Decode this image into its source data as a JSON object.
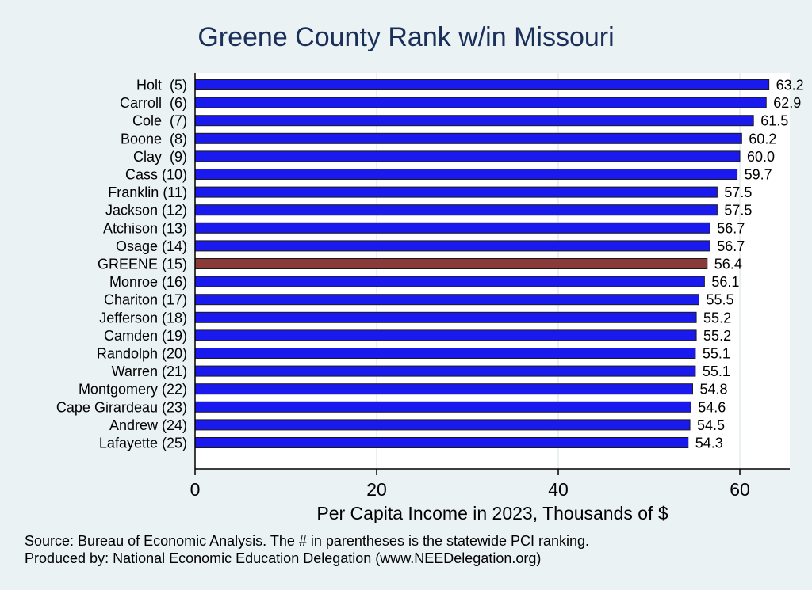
{
  "chart_data": {
    "type": "bar",
    "orientation": "horizontal",
    "title": "Greene County Rank w/in Missouri",
    "xlabel": "Per Capita Income in 2023, Thousands of $",
    "ylabel": "",
    "xlim": [
      0,
      65.5
    ],
    "xticks": [
      0,
      20,
      40,
      60
    ],
    "grid": true,
    "categories": [
      "Holt  (5)",
      "Carroll  (6)",
      "Cole  (7)",
      "Boone  (8)",
      "Clay  (9)",
      "Cass (10)",
      "Franklin (11)",
      "Jackson (12)",
      "Atchison (13)",
      "Osage (14)",
      "GREENE (15)",
      "Monroe (16)",
      "Chariton (17)",
      "Jefferson (18)",
      "Camden (19)",
      "Randolph (20)",
      "Warren (21)",
      "Montgomery (22)",
      "Cape Girardeau (23)",
      "Andrew (24)",
      "Lafayette (25)"
    ],
    "values": [
      63.2,
      62.9,
      61.5,
      60.2,
      60.0,
      59.7,
      57.5,
      57.5,
      56.7,
      56.7,
      56.4,
      56.1,
      55.5,
      55.2,
      55.2,
      55.1,
      55.1,
      54.8,
      54.6,
      54.5,
      54.3
    ],
    "value_labels": [
      "63.2",
      "62.9",
      "61.5",
      "60.2",
      "60.0",
      "59.7",
      "57.5",
      "57.5",
      "56.7",
      "56.7",
      "56.4",
      "56.1",
      "55.5",
      "55.2",
      "55.2",
      "55.1",
      "55.1",
      "54.8",
      "54.6",
      "54.5",
      "54.3"
    ],
    "highlight_index": 10,
    "colors": {
      "bar": "#1a1aee",
      "highlight": "#8b3a3a",
      "plot_bg": "#ffffff",
      "page_bg": "#eaf2f3",
      "grid": "#e4ecee"
    }
  },
  "source": {
    "line1": "Source: Bureau of Economic Analysis. The # in parentheses is the statewide PCI ranking.",
    "line2": "Produced by: National Economic Education Delegation (www.NEEDelegation.org)"
  }
}
